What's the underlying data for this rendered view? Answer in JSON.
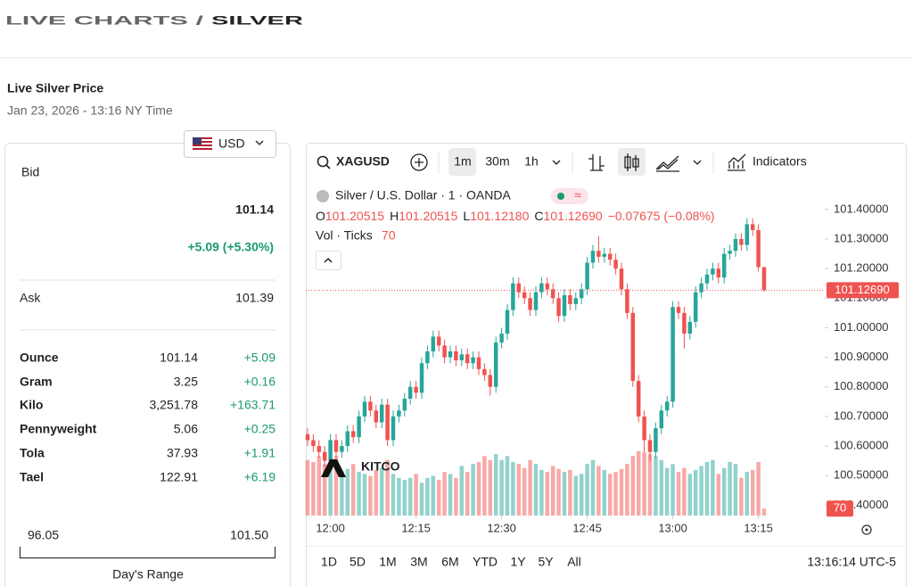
{
  "header": {
    "title_prefix": "LIVE CHARTS /",
    "title": "SILVER",
    "subtitle": "Live Silver Price",
    "date": "Jan 23, 2026 - 13:16 NY Time"
  },
  "panel": {
    "currency": "USD",
    "bid_label": "Bid",
    "bid": "101.14",
    "bid_change": "+5.09 (+5.30%)",
    "ask_label": "Ask",
    "ask": "101.39",
    "rows": [
      [
        "Ounce",
        "101.14",
        "+5.09"
      ],
      [
        "Gram",
        "3.25",
        "+0.16"
      ],
      [
        "Kilo",
        "3,251.78",
        "+163.71"
      ],
      [
        "Pennyweight",
        "5.06",
        "+0.25"
      ],
      [
        "Tola",
        "37.93",
        "+1.91"
      ],
      [
        "Tael",
        "122.91",
        "+6.19"
      ]
    ],
    "range_low": "96.05",
    "range_high": "101.50",
    "range_label": "Day's Range"
  },
  "toolbar": {
    "symbol": "XAGUSD",
    "intervals": [
      "1m",
      "30m",
      "1h"
    ],
    "indicators": "Indicators",
    "legend": "Silver / U.S. Dollar · 1 · OANDA",
    "ohlc": [
      [
        "O",
        "101.20515"
      ],
      [
        "H",
        "101.20515"
      ],
      [
        "L",
        "101.12180"
      ],
      [
        "C",
        "101.12690"
      ]
    ],
    "change": "−0.07675 (−0.08%)",
    "vol_label": "Vol · Ticks",
    "ranges": [
      "1D",
      "5D",
      "1M",
      "3M",
      "6M",
      "YTD",
      "1Y",
      "5Y",
      "All"
    ],
    "clock": "13:16:14 UTC-5",
    "watermark": "KITCO"
  },
  "chart_data": {
    "type": "candlestick",
    "up_color": "#26a69a",
    "down_color": "#ef5350",
    "open": [
      100.64,
      100.62,
      100.6,
      100.58,
      100.55,
      100.62,
      100.58,
      100.6,
      100.65,
      100.63,
      100.7,
      100.75,
      100.72,
      100.68,
      100.74,
      100.62,
      100.7,
      100.72,
      100.76,
      100.8,
      100.78,
      100.88,
      100.92,
      100.97,
      100.94,
      100.9,
      100.92,
      100.89,
      100.91,
      100.88,
      100.9,
      100.86,
      100.84,
      100.8,
      100.95,
      100.98,
      101.06,
      101.15,
      101.12,
      101.1,
      101.06,
      101.12,
      101.15,
      101.13,
      101.1,
      101.04,
      101.11,
      101.08,
      101.1,
      101.13,
      101.22,
      101.26,
      101.24,
      101.25,
      101.23,
      101.2,
      101.13,
      101.05,
      100.82,
      100.7,
      100.62,
      100.58,
      100.66,
      100.72,
      100.75,
      101.07,
      101.05,
      100.98,
      101.02,
      101.12,
      101.15,
      101.18,
      101.2,
      101.17,
      101.25,
      101.26,
      101.3,
      101.28,
      101.35,
      101.33,
      101.20515
    ],
    "high": [
      100.66,
      100.64,
      100.62,
      100.6,
      100.64,
      100.64,
      100.62,
      100.67,
      100.67,
      100.72,
      100.77,
      100.77,
      100.74,
      100.76,
      100.76,
      100.72,
      100.74,
      100.78,
      100.82,
      100.82,
      100.9,
      100.94,
      100.99,
      100.99,
      100.96,
      100.94,
      100.94,
      100.93,
      100.93,
      100.92,
      100.92,
      100.88,
      100.86,
      100.97,
      101.0,
      101.08,
      101.17,
      101.17,
      101.14,
      101.12,
      101.14,
      101.17,
      101.17,
      101.15,
      101.12,
      101.13,
      101.13,
      101.12,
      101.15,
      101.24,
      101.28,
      101.31,
      101.27,
      101.27,
      101.25,
      101.22,
      101.15,
      101.07,
      100.84,
      100.72,
      100.64,
      100.68,
      100.74,
      100.77,
      101.09,
      101.09,
      101.07,
      101.04,
      101.14,
      101.17,
      101.2,
      101.22,
      101.22,
      101.27,
      101.28,
      101.32,
      101.32,
      101.37,
      101.37,
      101.35,
      101.20515
    ],
    "low": [
      100.6,
      100.58,
      100.56,
      100.53,
      100.53,
      100.56,
      100.56,
      100.58,
      100.61,
      100.61,
      100.68,
      100.7,
      100.66,
      100.66,
      100.6,
      100.6,
      100.68,
      100.7,
      100.74,
      100.76,
      100.76,
      100.86,
      100.9,
      100.92,
      100.88,
      100.88,
      100.87,
      100.87,
      100.86,
      100.86,
      100.84,
      100.82,
      100.77,
      100.78,
      100.93,
      100.96,
      101.04,
      101.1,
      101.08,
      101.04,
      101.04,
      101.1,
      101.11,
      101.08,
      101.02,
      101.02,
      101.06,
      101.06,
      101.08,
      101.11,
      101.2,
      101.22,
      101.22,
      101.21,
      101.18,
      101.11,
      101.03,
      100.8,
      100.68,
      100.58,
      100.55,
      100.56,
      100.64,
      100.7,
      100.73,
      101.03,
      100.93,
      100.96,
      101.0,
      101.1,
      101.13,
      101.16,
      101.15,
      101.15,
      101.23,
      101.24,
      101.26,
      101.26,
      101.31,
      101.19,
      101.1218
    ],
    "close": [
      100.62,
      100.6,
      100.58,
      100.55,
      100.62,
      100.58,
      100.6,
      100.65,
      100.63,
      100.7,
      100.75,
      100.72,
      100.68,
      100.74,
      100.62,
      100.7,
      100.72,
      100.76,
      100.8,
      100.78,
      100.88,
      100.92,
      100.97,
      100.94,
      100.9,
      100.92,
      100.89,
      100.91,
      100.88,
      100.9,
      100.86,
      100.84,
      100.8,
      100.95,
      100.98,
      101.06,
      101.15,
      101.12,
      101.1,
      101.06,
      101.12,
      101.15,
      101.13,
      101.1,
      101.04,
      101.11,
      101.08,
      101.1,
      101.13,
      101.22,
      101.26,
      101.24,
      101.25,
      101.23,
      101.2,
      101.13,
      101.05,
      100.82,
      100.7,
      100.62,
      100.58,
      100.66,
      100.72,
      100.75,
      101.07,
      101.05,
      100.98,
      101.02,
      101.12,
      101.15,
      101.18,
      101.2,
      101.17,
      101.25,
      101.26,
      101.3,
      101.28,
      101.35,
      101.33,
      101.205,
      101.1269
    ],
    "volume": {
      "values": [
        560,
        540,
        600,
        520,
        480,
        600,
        450,
        470,
        520,
        440,
        420,
        400,
        460,
        480,
        560,
        420,
        380,
        360,
        380,
        420,
        330,
        380,
        400,
        360,
        440,
        420,
        380,
        500,
        440,
        520,
        540,
        600,
        560,
        620,
        560,
        600,
        540,
        520,
        480,
        560,
        520,
        460,
        440,
        500,
        470,
        440,
        460,
        400,
        420,
        520,
        560,
        500,
        460,
        420,
        440,
        470,
        520,
        600,
        650,
        640,
        620,
        600,
        560,
        480,
        520,
        440,
        480,
        420,
        460,
        500,
        540,
        560,
        420,
        480,
        540,
        520,
        380,
        440,
        460,
        540,
        70
      ],
      "vlim": [
        0,
        3400
      ]
    },
    "xlim": [
      -0.3125,
      90.625
    ],
    "xticks": [
      {
        "value": 4,
        "label": "12:00"
      },
      {
        "value": 19,
        "label": "12:15"
      },
      {
        "value": 34,
        "label": "12:30"
      },
      {
        "value": 49,
        "label": "12:45"
      },
      {
        "value": 64,
        "label": "13:00"
      },
      {
        "value": 79,
        "label": "13:15"
      }
    ],
    "ylim": [
      100.3649,
      101.505
    ],
    "yticks": [
      {
        "value": 101.4,
        "label": "101.40000"
      },
      {
        "value": 101.3,
        "label": "101.30000"
      },
      {
        "value": 101.2,
        "label": "101.20000"
      },
      {
        "value": 101.1,
        "label": "101.10000"
      },
      {
        "value": 101.0,
        "label": "101.00000"
      },
      {
        "value": 100.9,
        "label": "100.90000"
      },
      {
        "value": 100.8,
        "label": "100.80000"
      },
      {
        "value": 100.7,
        "label": "100.70000"
      },
      {
        "value": 100.6,
        "label": "100.60000"
      },
      {
        "value": 100.5,
        "label": "100.50000"
      },
      {
        "value": 100.4,
        "label": "100.40000"
      }
    ],
    "price_line": {
      "value": 101.1269,
      "label": "101.12690"
    },
    "grid": false
  }
}
